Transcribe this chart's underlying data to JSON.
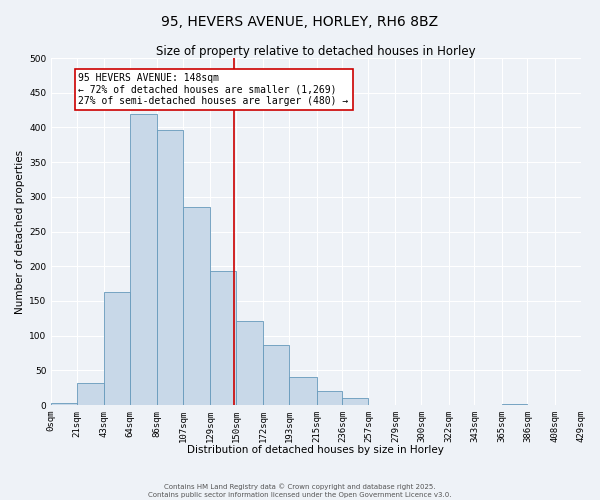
{
  "title": "95, HEVERS AVENUE, HORLEY, RH6 8BZ",
  "subtitle": "Size of property relative to detached houses in Horley",
  "xlabel": "Distribution of detached houses by size in Horley",
  "ylabel": "Number of detached properties",
  "bin_edges": [
    0,
    21,
    43,
    64,
    86,
    107,
    129,
    150,
    172,
    193,
    215,
    236,
    257,
    279,
    300,
    322,
    343,
    365,
    386,
    408,
    429
  ],
  "bin_labels": [
    "0sqm",
    "21sqm",
    "43sqm",
    "64sqm",
    "86sqm",
    "107sqm",
    "129sqm",
    "150sqm",
    "172sqm",
    "193sqm",
    "215sqm",
    "236sqm",
    "257sqm",
    "279sqm",
    "300sqm",
    "322sqm",
    "343sqm",
    "365sqm",
    "386sqm",
    "408sqm",
    "429sqm"
  ],
  "bar_heights": [
    3,
    32,
    163,
    420,
    397,
    285,
    193,
    121,
    86,
    41,
    20,
    10,
    0,
    0,
    0,
    0,
    0,
    1,
    0,
    0
  ],
  "bar_color": "#c8d8e8",
  "bar_edge_color": "#6699bb",
  "ylim": [
    0,
    500
  ],
  "yticks": [
    0,
    50,
    100,
    150,
    200,
    250,
    300,
    350,
    400,
    450,
    500
  ],
  "property_size": 148,
  "vline_color": "#cc0000",
  "annotation_title": "95 HEVERS AVENUE: 148sqm",
  "annotation_line1": "← 72% of detached houses are smaller (1,269)",
  "annotation_line2": "27% of semi-detached houses are larger (480) →",
  "annotation_box_color": "#ffffff",
  "annotation_border_color": "#cc0000",
  "footer_line1": "Contains HM Land Registry data © Crown copyright and database right 2025.",
  "footer_line2": "Contains public sector information licensed under the Open Government Licence v3.0.",
  "bg_color": "#eef2f7",
  "grid_color": "#ffffff",
  "title_fontsize": 10,
  "subtitle_fontsize": 8.5,
  "ylabel_fontsize": 7.5,
  "xlabel_fontsize": 7.5,
  "tick_fontsize": 6.5,
  "annot_fontsize": 7,
  "footer_fontsize": 5
}
